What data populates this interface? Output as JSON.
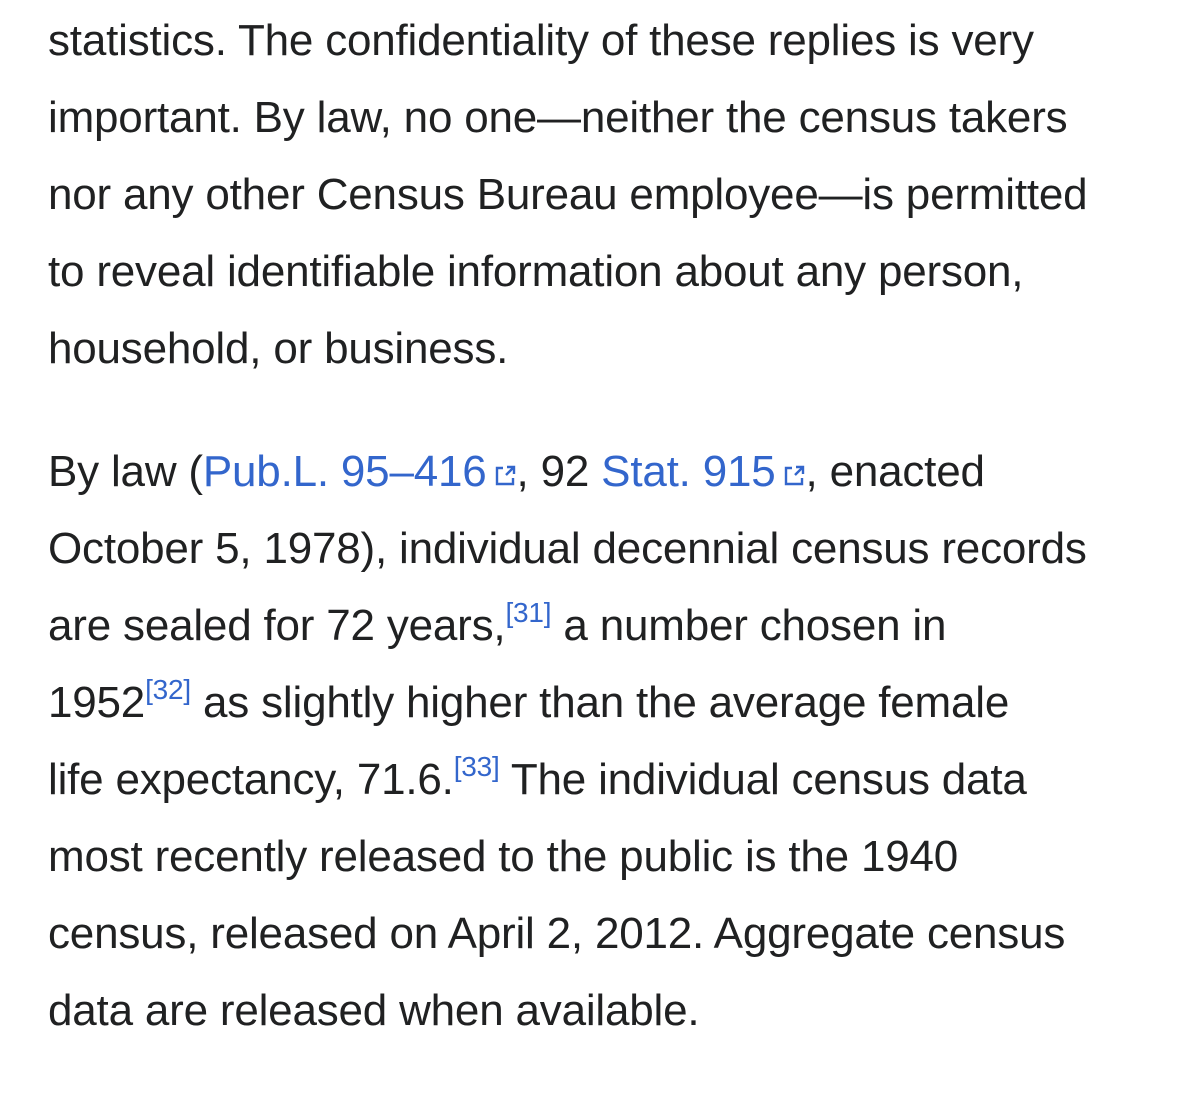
{
  "paragraph1": {
    "line1": "statistics. The confidentiality of these replies is very",
    "line2": "important. By law, no one—neither the census takers",
    "line3": "nor any other Census Bureau employee—is permitted",
    "line4": "to reveal identifiable information about any person,",
    "line5": "household, or business."
  },
  "paragraph2": {
    "l1_prefix": "By law (",
    "publ_link": "Pub.L. 95–416",
    "l1_mid": ", 92 ",
    "stat_link": "Stat. 915",
    "l1_suffix": ", enacted",
    "line2": "October 5, 1978), individual decennial census records",
    "l3_text": "are sealed for 72 years,",
    "ref31": "[31]",
    "l3_suffix": " a number chosen in",
    "l4_prefix": "1952",
    "ref32": "[32]",
    "l4_suffix": " as slightly higher than the average female",
    "l5_prefix": "life expectancy, 71.6.",
    "ref33": "[33]",
    "l5_suffix": " The individual census data",
    "line6": "most recently released to the public is the 1940",
    "line7": "census, released on April 2, 2012. Aggregate census",
    "line8": "data are released when available."
  },
  "colors": {
    "text": "#202122",
    "link": "#3366cc",
    "background": "#ffffff"
  },
  "icons": {
    "external_link": "external-link-icon"
  }
}
